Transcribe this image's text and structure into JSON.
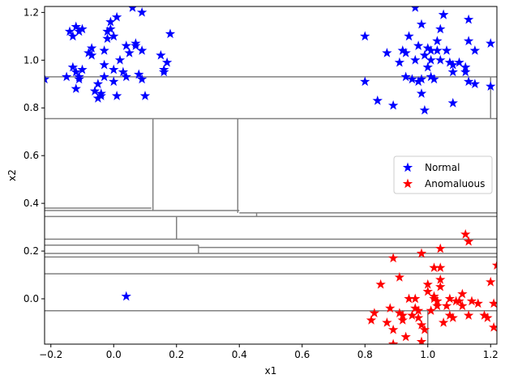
{
  "chart_data": {
    "type": "scatter",
    "xlabel": "x1",
    "ylabel": "x2",
    "xlim": [
      -0.22,
      1.22
    ],
    "ylim": [
      -0.19,
      1.225
    ],
    "xticks": [
      -0.2,
      0.0,
      0.2,
      0.4,
      0.6,
      0.8,
      1.0,
      1.2
    ],
    "yticks": [
      0.0,
      0.2,
      0.4,
      0.6,
      0.8,
      1.0,
      1.2
    ],
    "x_tick_labels": [
      "−0.2",
      "0.0",
      "0.2",
      "0.4",
      "0.6",
      "0.8",
      "1.0",
      "1.2"
    ],
    "y_tick_labels": [
      "0.0",
      "0.2",
      "0.4",
      "0.6",
      "0.8",
      "1.0",
      "1.2"
    ],
    "legend_position": "center-right",
    "grid": false,
    "series": [
      {
        "name": "Normal",
        "marker": "star",
        "color": "#0000ff",
        "points": [
          [
            -0.22,
            0.92
          ],
          [
            -0.15,
            0.93
          ],
          [
            -0.14,
            1.12
          ],
          [
            -0.13,
            1.1
          ],
          [
            -0.12,
            1.14
          ],
          [
            -0.11,
            1.12
          ],
          [
            -0.1,
            1.13
          ],
          [
            -0.13,
            0.97
          ],
          [
            -0.12,
            0.95
          ],
          [
            -0.11,
            0.93
          ],
          [
            -0.1,
            0.96
          ],
          [
            -0.12,
            0.88
          ],
          [
            -0.11,
            0.92
          ],
          [
            -0.08,
            1.03
          ],
          [
            -0.07,
            1.05
          ],
          [
            -0.07,
            1.02
          ],
          [
            -0.06,
            0.87
          ],
          [
            -0.05,
            0.9
          ],
          [
            -0.05,
            0.84
          ],
          [
            -0.04,
            0.85
          ],
          [
            -0.04,
            0.86
          ],
          [
            -0.03,
            0.98
          ],
          [
            -0.03,
            0.93
          ],
          [
            -0.03,
            1.04
          ],
          [
            -0.02,
            1.09
          ],
          [
            -0.02,
            1.12
          ],
          [
            -0.01,
            1.16
          ],
          [
            -0.01,
            1.13
          ],
          [
            0.0,
            0.91
          ],
          [
            0.0,
            0.96
          ],
          [
            0.0,
            1.1
          ],
          [
            0.01,
            0.85
          ],
          [
            0.01,
            1.18
          ],
          [
            0.02,
            1.0
          ],
          [
            0.03,
            0.95
          ],
          [
            0.04,
            0.93
          ],
          [
            0.04,
            1.06
          ],
          [
            0.05,
            1.03
          ],
          [
            0.06,
            1.22
          ],
          [
            0.07,
            1.07
          ],
          [
            0.07,
            1.06
          ],
          [
            0.08,
            0.94
          ],
          [
            0.09,
            1.2
          ],
          [
            0.09,
            1.04
          ],
          [
            0.09,
            0.92
          ],
          [
            0.1,
            0.85
          ],
          [
            0.15,
            1.02
          ],
          [
            0.16,
            0.96
          ],
          [
            0.16,
            0.95
          ],
          [
            0.17,
            0.99
          ],
          [
            0.18,
            1.11
          ],
          [
            0.04,
            0.01
          ],
          [
            0.8,
            1.1
          ],
          [
            0.8,
            0.91
          ],
          [
            0.84,
            0.83
          ],
          [
            0.87,
            1.03
          ],
          [
            0.89,
            0.81
          ],
          [
            0.91,
            0.99
          ],
          [
            0.92,
            1.04
          ],
          [
            0.93,
            0.93
          ],
          [
            0.93,
            1.03
          ],
          [
            0.94,
            1.1
          ],
          [
            0.95,
            0.92
          ],
          [
            0.96,
            1.22
          ],
          [
            0.96,
            1.0
          ],
          [
            0.97,
            1.06
          ],
          [
            0.97,
            0.91
          ],
          [
            0.98,
            1.15
          ],
          [
            0.98,
            0.92
          ],
          [
            0.98,
            0.86
          ],
          [
            0.99,
            0.79
          ],
          [
            0.99,
            1.02
          ],
          [
            1.0,
            1.05
          ],
          [
            1.0,
            0.97
          ],
          [
            1.01,
            0.93
          ],
          [
            1.01,
            1.04
          ],
          [
            1.01,
            1.0
          ],
          [
            1.02,
            0.92
          ],
          [
            1.03,
            1.04
          ],
          [
            1.03,
            1.08
          ],
          [
            1.04,
            1.13
          ],
          [
            1.04,
            1.0
          ],
          [
            1.05,
            1.19
          ],
          [
            1.05,
            1.19
          ],
          [
            1.06,
            1.04
          ],
          [
            1.07,
            0.99
          ],
          [
            1.08,
            0.95
          ],
          [
            1.08,
            0.82
          ],
          [
            1.08,
            0.98
          ],
          [
            1.1,
            0.99
          ],
          [
            1.12,
            0.97
          ],
          [
            1.12,
            0.95
          ],
          [
            1.13,
            1.17
          ],
          [
            1.13,
            1.08
          ],
          [
            1.13,
            0.91
          ],
          [
            1.15,
            0.9
          ],
          [
            1.15,
            1.04
          ],
          [
            1.2,
            1.07
          ],
          [
            1.2,
            0.89
          ]
        ]
      },
      {
        "name": "Anomaluous",
        "marker": "star",
        "color": "#ff0000",
        "points": [
          [
            0.82,
            -0.09
          ],
          [
            0.83,
            -0.06
          ],
          [
            0.85,
            0.06
          ],
          [
            0.87,
            -0.1
          ],
          [
            0.88,
            -0.04
          ],
          [
            0.89,
            0.17
          ],
          [
            0.89,
            -0.13
          ],
          [
            0.89,
            -0.19
          ],
          [
            0.91,
            -0.06
          ],
          [
            0.91,
            0.09
          ],
          [
            0.92,
            -0.07
          ],
          [
            0.92,
            -0.09
          ],
          [
            0.93,
            -0.16
          ],
          [
            0.94,
            0.0
          ],
          [
            0.95,
            -0.07
          ],
          [
            0.96,
            0.0
          ],
          [
            0.96,
            -0.04
          ],
          [
            0.97,
            -0.05
          ],
          [
            0.97,
            -0.08
          ],
          [
            0.98,
            -0.11
          ],
          [
            0.98,
            -0.18
          ],
          [
            0.98,
            0.19
          ],
          [
            0.99,
            -0.13
          ],
          [
            1.0,
            0.03
          ],
          [
            1.0,
            0.06
          ],
          [
            1.01,
            -0.05
          ],
          [
            1.02,
            0.01
          ],
          [
            1.02,
            0.13
          ],
          [
            1.02,
            0.0
          ],
          [
            1.03,
            -0.01
          ],
          [
            1.03,
            -0.03
          ],
          [
            1.04,
            0.21
          ],
          [
            1.04,
            0.13
          ],
          [
            1.04,
            0.08
          ],
          [
            1.04,
            0.05
          ],
          [
            1.05,
            -0.1
          ],
          [
            1.06,
            -0.03
          ],
          [
            1.07,
            0.0
          ],
          [
            1.07,
            -0.07
          ],
          [
            1.08,
            -0.08
          ],
          [
            1.09,
            -0.01
          ],
          [
            1.1,
            -0.01
          ],
          [
            1.11,
            0.02
          ],
          [
            1.11,
            -0.03
          ],
          [
            1.12,
            0.27
          ],
          [
            1.13,
            0.24
          ],
          [
            1.13,
            -0.07
          ],
          [
            1.14,
            -0.01
          ],
          [
            1.16,
            -0.02
          ],
          [
            1.18,
            -0.07
          ],
          [
            1.19,
            -0.08
          ],
          [
            1.2,
            0.07
          ],
          [
            1.21,
            -0.02
          ],
          [
            1.21,
            -0.12
          ],
          [
            1.22,
            0.14
          ]
        ]
      }
    ],
    "partition_lines": {
      "horizontal": [
        [
          -0.22,
          1.2,
          0.93
        ],
        [
          1.2,
          1.22,
          0.93
        ],
        [
          -0.22,
          1.22,
          0.755
        ],
        [
          -0.22,
          0.12,
          0.38
        ],
        [
          -0.22,
          0.12,
          0.37
        ],
        [
          0.12,
          0.4,
          0.37
        ],
        [
          0.4,
          1.22,
          0.36
        ],
        [
          -0.22,
          1.22,
          0.345
        ],
        [
          -0.22,
          1.22,
          0.25
        ],
        [
          -0.22,
          0.27,
          0.225
        ],
        [
          0.27,
          1.22,
          0.215
        ],
        [
          -0.22,
          1.22,
          0.19
        ],
        [
          -0.22,
          1.22,
          0.175
        ],
        [
          -0.22,
          1.22,
          0.105
        ],
        [
          -0.22,
          1.22,
          -0.05
        ]
      ],
      "vertical": [
        [
          1.2,
          0.755,
          0.93
        ],
        [
          0.125,
          0.37,
          0.755
        ],
        [
          0.395,
          0.36,
          0.755
        ],
        [
          0.455,
          0.345,
          0.36
        ],
        [
          0.2,
          0.25,
          0.345
        ],
        [
          0.27,
          0.19,
          0.225
        ],
        [
          1.0,
          -0.19,
          -0.05
        ]
      ]
    }
  }
}
